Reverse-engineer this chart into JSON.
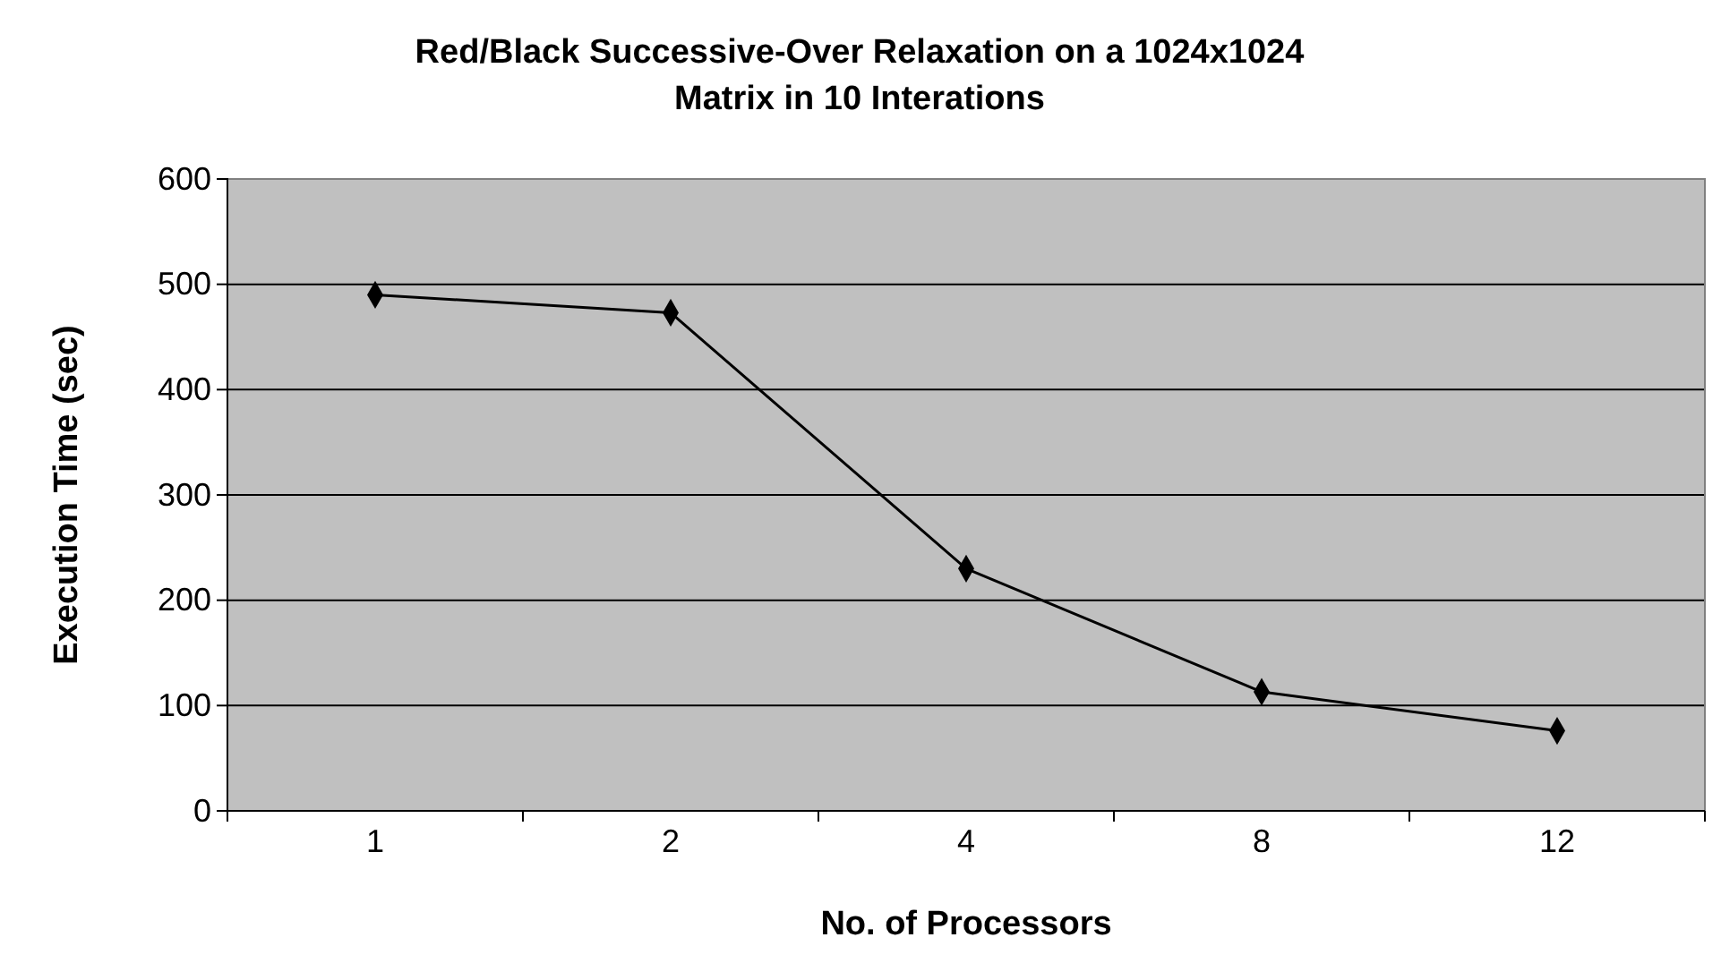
{
  "chart_data": {
    "type": "line",
    "title": "Red/Black Successive-Over Relaxation on a 1024x1024 Matrix in 10 Interations",
    "xlabel": "No. of Processors",
    "ylabel": "Execution Time (sec)",
    "categories": [
      "1",
      "2",
      "4",
      "8",
      "12"
    ],
    "series": [
      {
        "color": "#000000",
        "values": [
          490,
          473,
          230,
          113,
          76
        ]
      }
    ],
    "ylim": [
      0,
      600
    ],
    "yticks": [
      0,
      100,
      200,
      300,
      400,
      500,
      600
    ],
    "grid": "y",
    "marker": "diamond",
    "line_style": "solid"
  }
}
